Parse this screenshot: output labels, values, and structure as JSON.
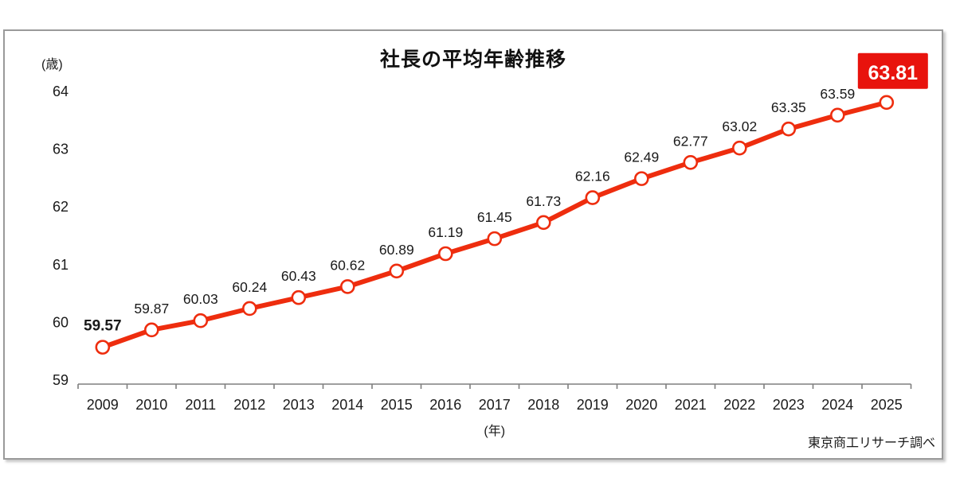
{
  "frame": {
    "title": "社長の平均年齢推移",
    "y_unit": "(歳)",
    "x_unit": "(年)",
    "source": "東京商工リサーチ調べ"
  },
  "chart_data": {
    "type": "line",
    "title": "社長の平均年齢推移",
    "x": [
      2009,
      2010,
      2011,
      2012,
      2013,
      2014,
      2015,
      2016,
      2017,
      2018,
      2019,
      2020,
      2021,
      2022,
      2023,
      2024,
      2025
    ],
    "values": [
      59.57,
      59.87,
      60.03,
      60.24,
      60.43,
      60.62,
      60.89,
      61.19,
      61.45,
      61.73,
      62.16,
      62.49,
      62.77,
      63.02,
      63.35,
      63.59,
      63.81
    ],
    "xlabel": "(年)",
    "ylabel": "(歳)",
    "ylim": [
      59,
      64
    ],
    "yticks": [
      59,
      60,
      61,
      62,
      63,
      64
    ],
    "grid": false,
    "legend_position": "none",
    "line_color": "#ee2d0e",
    "marker_fill": "#ffffff",
    "axis_color": "#7f7f7f",
    "label_color": "#1a1a1a",
    "first_label_style": "bold",
    "highlight_last_bg": "#e8130d",
    "highlight_last_color": "#ffffff",
    "source": "東京商工リサーチ調べ"
  }
}
